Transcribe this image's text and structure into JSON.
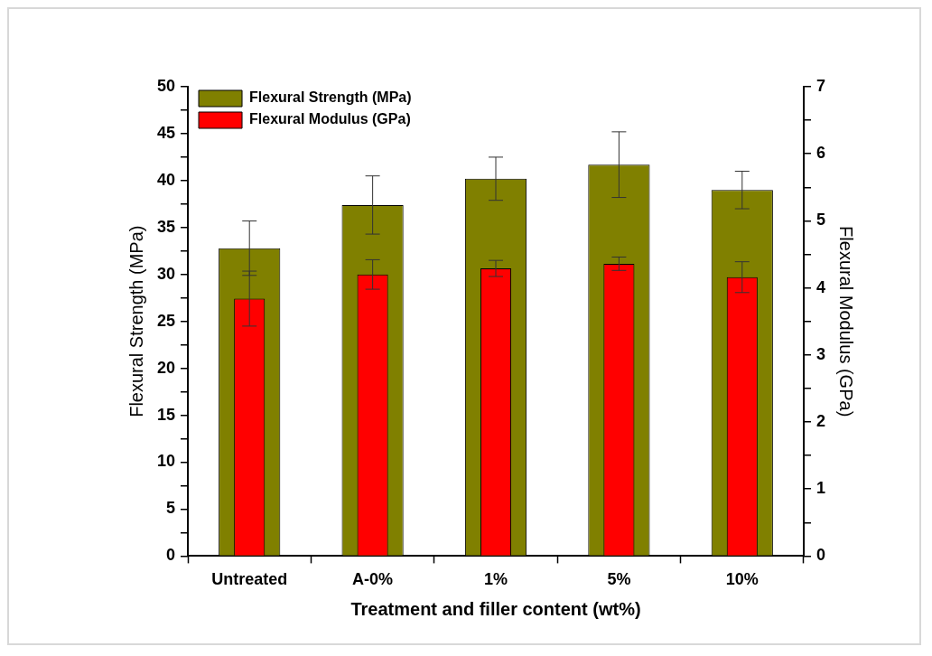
{
  "chart_data": {
    "type": "bar",
    "xlabel": "Treatment and filler content (wt%)",
    "ylabel": "Flexural Strength (MPa)",
    "y2label": "Flexural Modulus (GPa)",
    "categories": [
      "Untreated",
      "A-0%",
      "1%",
      "5%",
      "10%"
    ],
    "series": [
      {
        "name": "Flexural Strength (MPa)",
        "color": "#808000",
        "values": [
          32.8,
          37.4,
          40.2,
          41.7,
          39.0
        ],
        "errors": [
          2.9,
          3.1,
          2.3,
          3.5,
          2.0
        ]
      },
      {
        "name": "Flexural Modulus (GPa)",
        "color": "#ff0000",
        "axis": "y2",
        "values": [
          3.84,
          4.2,
          4.29,
          4.36,
          4.16
        ],
        "errors": [
          0.41,
          0.22,
          0.12,
          0.1,
          0.23
        ]
      }
    ],
    "ylim": [
      0,
      50
    ],
    "yticks": [
      0,
      {
        "value": 2.5,
        "label": null
      },
      5,
      {
        "value": 7.5,
        "label": null
      },
      10,
      {
        "value": 12.5,
        "label": null
      },
      15,
      {
        "value": 17.5,
        "label": null
      },
      20,
      {
        "value": 22.5,
        "label": null
      },
      25,
      {
        "value": 27.5,
        "label": null
      },
      30,
      {
        "value": 32.5,
        "label": null
      },
      35,
      {
        "value": 37.5,
        "label": null
      },
      40,
      {
        "value": 42.5,
        "label": null
      },
      45,
      {
        "value": 47.5,
        "label": null
      },
      50
    ],
    "y2lim": [
      0,
      7
    ],
    "y2ticks": [
      0,
      {
        "value": 0.5,
        "label": null
      },
      1,
      {
        "value": 1.5,
        "label": null
      },
      2,
      {
        "value": 2.5,
        "label": null
      },
      3,
      {
        "value": 3.5,
        "label": null
      },
      4,
      {
        "value": 4.5,
        "label": null
      },
      5,
      {
        "value": 5.5,
        "label": null
      },
      6,
      {
        "value": 6.5,
        "label": null
      },
      7
    ],
    "grid": false,
    "legend": "top left"
  }
}
